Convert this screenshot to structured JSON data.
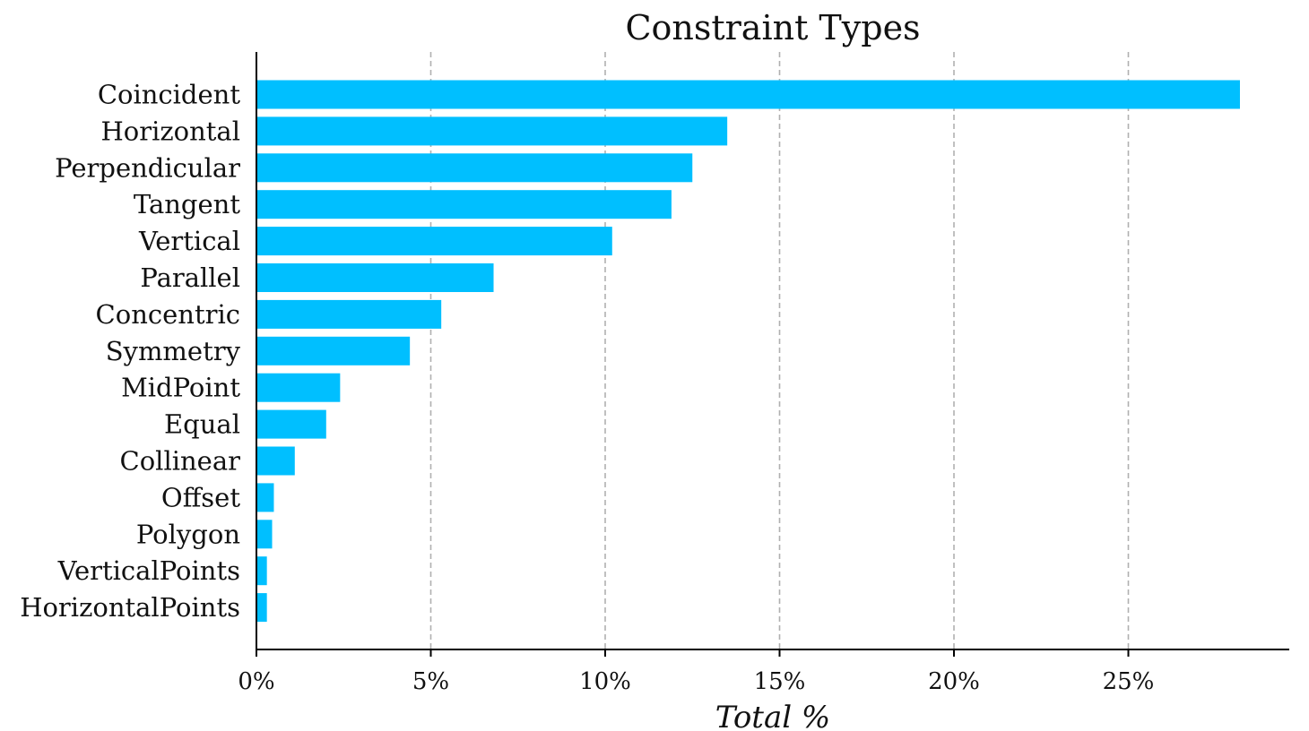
{
  "chart_data": {
    "type": "bar",
    "orientation": "horizontal",
    "title": "Constraint Types",
    "xlabel": "Total %",
    "ylabel": "",
    "categories": [
      "Coincident",
      "Horizontal",
      "Perpendicular",
      "Tangent",
      "Vertical",
      "Parallel",
      "Concentric",
      "Symmetry",
      "MidPoint",
      "Equal",
      "Collinear",
      "Offset",
      "Polygon",
      "VerticalPoints",
      "HorizontalPoints"
    ],
    "values": [
      28.2,
      13.5,
      12.5,
      11.9,
      10.2,
      6.8,
      5.3,
      4.4,
      2.4,
      2.0,
      1.1,
      0.5,
      0.45,
      0.3,
      0.3
    ],
    "xlim": [
      0,
      29.5
    ],
    "xticks": [
      0,
      5,
      10,
      15,
      20,
      25
    ],
    "xtick_labels": [
      "0%",
      "5%",
      "10%",
      "15%",
      "20%",
      "25%"
    ],
    "grid": "vertical dashed",
    "legend": "none",
    "colors": {
      "bar": "#00BFFF",
      "grid": "#b0b0b0",
      "axis": "#000000"
    }
  }
}
